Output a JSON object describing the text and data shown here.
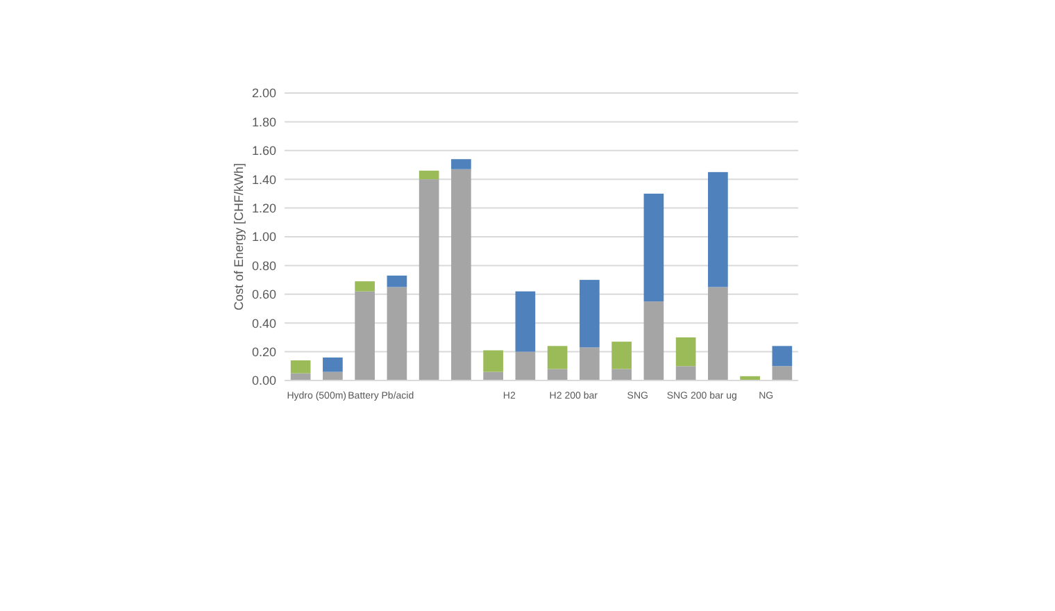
{
  "chart_data": {
    "type": "bar",
    "ylabel": "Cost of Energy [CHF/kWh]",
    "stacked": true,
    "categories": [
      "Hydro (500m)",
      null,
      "Battery Pb/acid",
      null,
      null,
      null,
      "H2",
      null,
      "H2 200 bar",
      null,
      "SNG",
      null,
      "SNG 200 bar ug",
      null,
      "NG",
      null
    ],
    "series": [
      {
        "color": "#a5a5a5",
        "values": [
          0.05,
          0.06,
          0.62,
          0.65,
          1.4,
          1.47,
          0.06,
          0.2,
          0.08,
          0.23,
          0.08,
          0.55,
          0.1,
          0.65,
          0,
          0.1
        ]
      },
      {
        "color": "#9bbb59",
        "values": [
          0.09,
          null,
          0.07,
          null,
          0.06,
          null,
          0.15,
          null,
          0.16,
          null,
          0.19,
          null,
          0.2,
          null,
          0.03,
          null
        ]
      },
      {
        "color": "#4f81bd",
        "values": [
          null,
          0.1,
          null,
          0.08,
          null,
          0.07,
          null,
          0.42,
          null,
          0.47,
          null,
          0.75,
          null,
          0.8,
          null,
          0.14
        ]
      }
    ],
    "ylim": [
      0,
      2
    ],
    "yticks": [
      {
        "value": 0,
        "label": "0.00"
      },
      {
        "value": 0.2,
        "label": "0.20"
      },
      {
        "value": 0.4,
        "label": "0.40"
      },
      {
        "value": 0.6,
        "label": "0.60"
      },
      {
        "value": 0.8,
        "label": "0.80"
      },
      {
        "value": 1,
        "label": "1.00"
      },
      {
        "value": 1.2,
        "label": "1.20"
      },
      {
        "value": 1.4,
        "label": "1.40"
      },
      {
        "value": 1.6,
        "label": "1.60"
      },
      {
        "value": 1.8,
        "label": "1.80"
      },
      {
        "value": 2,
        "label": "2.00"
      }
    ],
    "grid": "y"
  }
}
